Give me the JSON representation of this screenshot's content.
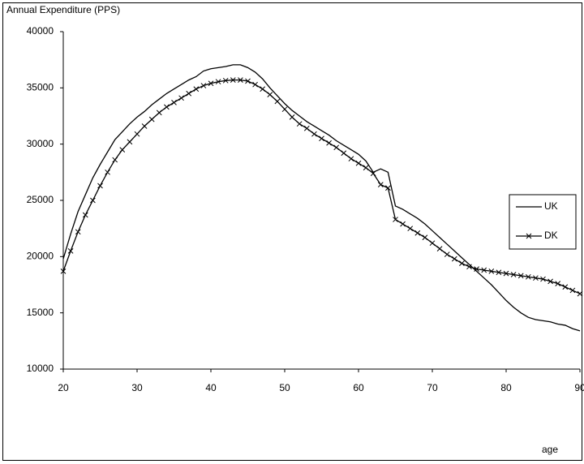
{
  "chart_data": {
    "type": "line",
    "title": "Annual Expenditure (PPS)",
    "x_label": "age",
    "x": [
      20,
      21,
      22,
      23,
      24,
      25,
      26,
      27,
      28,
      29,
      30,
      31,
      32,
      33,
      34,
      35,
      36,
      37,
      38,
      39,
      40,
      41,
      42,
      43,
      44,
      45,
      46,
      47,
      48,
      49,
      50,
      51,
      52,
      53,
      54,
      55,
      56,
      57,
      58,
      59,
      60,
      61,
      62,
      63,
      64,
      65,
      66,
      67,
      68,
      69,
      70,
      71,
      72,
      73,
      74,
      75,
      76,
      77,
      78,
      79,
      80,
      81,
      82,
      83,
      84,
      85,
      86,
      87,
      88,
      89,
      90
    ],
    "series": [
      {
        "name": "UK",
        "color": "#000000",
        "marker": "none",
        "values": [
          19800,
          22000,
          24000,
          25500,
          27000,
          28200,
          29300,
          30400,
          31100,
          31800,
          32400,
          32900,
          33500,
          34000,
          34500,
          34900,
          35300,
          35700,
          36000,
          36500,
          36700,
          36800,
          36900,
          37050,
          37050,
          36800,
          36400,
          35800,
          35000,
          34300,
          33600,
          33000,
          32500,
          32000,
          31600,
          31200,
          30800,
          30300,
          29900,
          29500,
          29100,
          28500,
          27500,
          27800,
          27500,
          24500,
          24200,
          23800,
          23400,
          22900,
          22300,
          21700,
          21100,
          20500,
          19900,
          19300,
          18700,
          18100,
          17500,
          16800,
          16100,
          15500,
          15000,
          14600,
          14400,
          14300,
          14200,
          14000,
          13900,
          13600,
          13400
        ]
      },
      {
        "name": "DK",
        "color": "#000000",
        "marker": "x",
        "values": [
          18700,
          20500,
          22200,
          23700,
          25000,
          26300,
          27500,
          28600,
          29500,
          30200,
          30900,
          31600,
          32200,
          32800,
          33300,
          33700,
          34100,
          34500,
          34900,
          35200,
          35400,
          35550,
          35650,
          35700,
          35700,
          35600,
          35300,
          34900,
          34400,
          33800,
          33100,
          32400,
          31800,
          31400,
          30900,
          30500,
          30100,
          29700,
          29200,
          28700,
          28300,
          27900,
          27400,
          26400,
          26100,
          23300,
          22900,
          22500,
          22100,
          21700,
          21200,
          20700,
          20200,
          19800,
          19400,
          19100,
          18900,
          18800,
          18700,
          18600,
          18500,
          18400,
          18300,
          18200,
          18100,
          18000,
          17800,
          17600,
          17300,
          17000,
          16700
        ]
      }
    ],
    "xlim": [
      20,
      90
    ],
    "xticks": [
      20,
      30,
      40,
      50,
      60,
      70,
      80,
      90
    ],
    "ylim": [
      10000,
      40000
    ],
    "yticks": [
      10000,
      15000,
      20000,
      25000,
      30000,
      35000,
      40000
    ],
    "grid": false,
    "legend": "right"
  }
}
